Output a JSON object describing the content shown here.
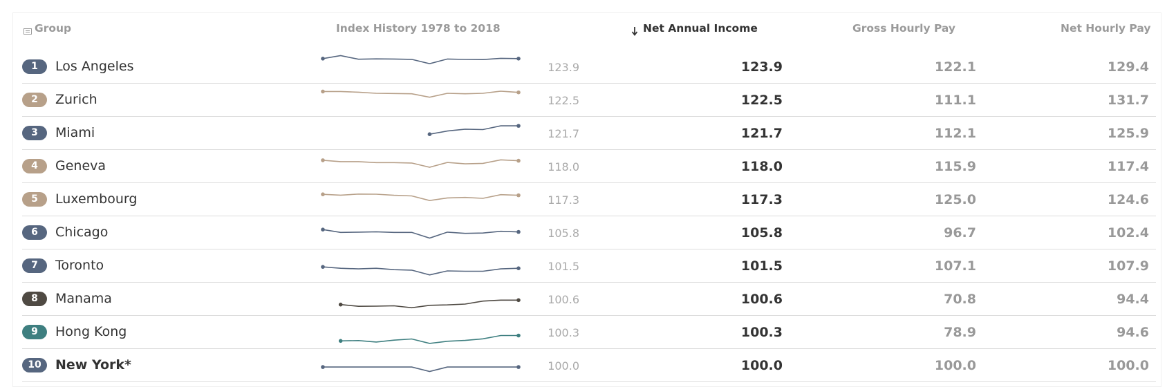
{
  "header": {
    "group": "Group",
    "index_history": "Index History 1978 to 2018",
    "net_annual_income": "Net Annual Income",
    "gross_hourly_pay": "Gross Hourly Pay",
    "net_hourly_pay": "Net Hourly Pay"
  },
  "colors": {
    "blue": "#56667f",
    "tan": "#b7a089",
    "dark": "#4f4a43",
    "teal": "#3e7f80"
  },
  "rows": [
    {
      "rank": "1",
      "city": "Los Angeles",
      "color": "#56667f",
      "index": "123.9",
      "net": "123.9",
      "gross": "122.1",
      "net_hourly": "129.4",
      "bold": false,
      "spark": [
        [
          0,
          123.9
        ],
        [
          1,
          131.1
        ],
        [
          2,
          122.5
        ],
        [
          3,
          123.3
        ],
        [
          4,
          122.9
        ],
        [
          5,
          122.1
        ],
        [
          6,
          111.5
        ],
        [
          7,
          123.0
        ],
        [
          8,
          121.9
        ],
        [
          9,
          121.6
        ],
        [
          10,
          124.6
        ],
        [
          11,
          123.9
        ]
      ]
    },
    {
      "rank": "2",
      "city": "Zurich",
      "color": "#b7a089",
      "index": "122.5",
      "net": "122.5",
      "gross": "111.1",
      "net_hourly": "131.7",
      "bold": false,
      "spark": [
        [
          0,
          124.6
        ],
        [
          1,
          124.6
        ],
        [
          2,
          122.9
        ],
        [
          3,
          120.2
        ],
        [
          4,
          119.8
        ],
        [
          5,
          119.1
        ],
        [
          6,
          110.7
        ],
        [
          7,
          120.2
        ],
        [
          8,
          119.1
        ],
        [
          9,
          120.2
        ],
        [
          10,
          125.4
        ],
        [
          11,
          122.5
        ]
      ]
    },
    {
      "rank": "3",
      "city": "Miami",
      "color": "#56667f",
      "index": "121.7",
      "net": "121.7",
      "gross": "112.1",
      "net_hourly": "125.9",
      "bold": false,
      "spark": [
        [
          6,
          101.5
        ],
        [
          7,
          109.2
        ],
        [
          8,
          113.8
        ],
        [
          9,
          112.7
        ],
        [
          10,
          121.7
        ],
        [
          11,
          121.7
        ]
      ]
    },
    {
      "rank": "4",
      "city": "Geneva",
      "color": "#b7a089",
      "index": "118.0",
      "net": "118.0",
      "gross": "115.9",
      "net_hourly": "117.4",
      "bold": false,
      "spark": [
        [
          0,
          118.8
        ],
        [
          1,
          115.4
        ],
        [
          2,
          115.4
        ],
        [
          3,
          113.1
        ],
        [
          4,
          113.1
        ],
        [
          5,
          112.0
        ],
        [
          6,
          101.9
        ],
        [
          7,
          113.4
        ],
        [
          8,
          110.0
        ],
        [
          9,
          111.2
        ],
        [
          10,
          119.8
        ],
        [
          11,
          117.6
        ]
      ]
    },
    {
      "rank": "5",
      "city": "Luxembourg",
      "color": "#b7a089",
      "index": "117.3",
      "net": "117.3",
      "gross": "125.0",
      "net_hourly": "124.6",
      "bold": false,
      "spark": [
        [
          0,
          116.5
        ],
        [
          1,
          114.6
        ],
        [
          2,
          117.3
        ],
        [
          3,
          116.9
        ],
        [
          4,
          114.2
        ],
        [
          5,
          112.7
        ],
        [
          6,
          101.5
        ],
        [
          7,
          107.9
        ],
        [
          8,
          109.0
        ],
        [
          9,
          106.8
        ],
        [
          10,
          115.8
        ],
        [
          11,
          114.2
        ]
      ]
    },
    {
      "rank": "6",
      "city": "Chicago",
      "color": "#56667f",
      "index": "105.8",
      "net": "105.8",
      "gross": "96.7",
      "net_hourly": "102.4",
      "bold": false,
      "spark": [
        [
          0,
          111.5
        ],
        [
          1,
          104.7
        ],
        [
          2,
          105.4
        ],
        [
          3,
          106.2
        ],
        [
          4,
          104.7
        ],
        [
          5,
          104.7
        ],
        [
          6,
          90.9
        ],
        [
          7,
          105.4
        ],
        [
          8,
          102.4
        ],
        [
          9,
          103.1
        ],
        [
          10,
          107.3
        ],
        [
          11,
          105.8
        ]
      ]
    },
    {
      "rank": "7",
      "city": "Toronto",
      "color": "#56667f",
      "index": "101.5",
      "net": "101.5",
      "gross": "107.1",
      "net_hourly": "107.9",
      "bold": false,
      "spark": [
        [
          0,
          101.5
        ],
        [
          1,
          98.1
        ],
        [
          2,
          96.6
        ],
        [
          3,
          98.1
        ],
        [
          4,
          94.7
        ],
        [
          5,
          93.6
        ],
        [
          6,
          82.1
        ],
        [
          7,
          91.7
        ],
        [
          8,
          90.9
        ],
        [
          9,
          90.9
        ],
        [
          10,
          96.6
        ],
        [
          11,
          98.1
        ]
      ]
    },
    {
      "rank": "8",
      "city": "Manama",
      "color": "#4f4a43",
      "index": "100.6",
      "net": "100.6",
      "gross": "70.8",
      "net_hourly": "94.4",
      "bold": false,
      "spark": [
        [
          1,
          90.6
        ],
        [
          2,
          86.4
        ],
        [
          3,
          86.8
        ],
        [
          4,
          87.6
        ],
        [
          5,
          82.9
        ],
        [
          6,
          88.7
        ],
        [
          7,
          89.8
        ],
        [
          8,
          91.7
        ],
        [
          9,
          99.0
        ],
        [
          10,
          101.3
        ],
        [
          11,
          101.3
        ]
      ]
    },
    {
      "rank": "9",
      "city": "Hong Kong",
      "color": "#3e7f80",
      "index": "100.3",
      "net": "100.3",
      "gross": "78.9",
      "net_hourly": "94.6",
      "bold": false,
      "spark": [
        [
          1,
          82.9
        ],
        [
          2,
          83.7
        ],
        [
          3,
          80.2
        ],
        [
          4,
          84.8
        ],
        [
          5,
          87.6
        ],
        [
          6,
          76.9
        ],
        [
          7,
          82.1
        ],
        [
          8,
          84.0
        ],
        [
          9,
          87.9
        ],
        [
          10,
          95.9
        ],
        [
          11,
          95.9
        ]
      ]
    },
    {
      "rank": "10",
      "city": "New York*",
      "color": "#56667f",
      "index": "100.0",
      "net": "100.0",
      "gross": "100.0",
      "net_hourly": "100.0",
      "bold": true,
      "spark": [
        [
          0,
          100.0
        ],
        [
          1,
          100.0
        ],
        [
          2,
          100.0
        ],
        [
          3,
          100.0
        ],
        [
          4,
          100.0
        ],
        [
          5,
          100.0
        ],
        [
          6,
          89.3
        ],
        [
          7,
          100.0
        ],
        [
          8,
          100.0
        ],
        [
          9,
          100.0
        ],
        [
          10,
          100.0
        ],
        [
          11,
          100.0
        ]
      ]
    }
  ]
}
